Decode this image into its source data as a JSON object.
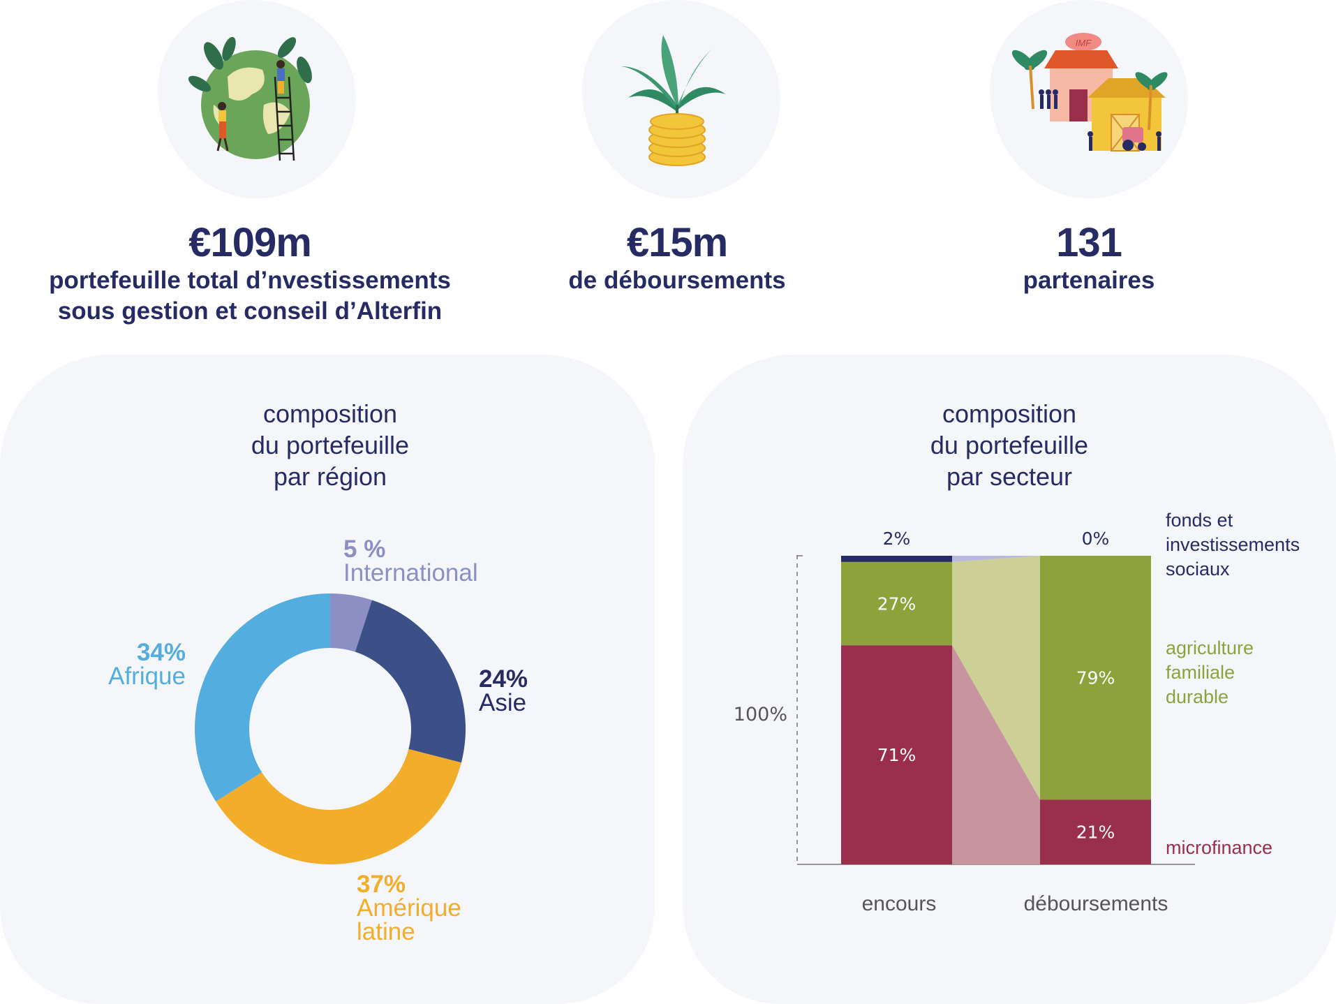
{
  "colors": {
    "navy": "#262c63",
    "blob": "#f5f6fa",
    "international": "#8b8fc4",
    "asie": "#3c4f86",
    "amerique_latine": "#f2ae2b",
    "afrique": "#54addf",
    "fonds": "#262c63",
    "agriculture": "#8ea23c",
    "microfinance": "#9a2f4c"
  },
  "stats": [
    {
      "value": "€109m",
      "desc_lines": [
        "portefeuille total d’nvestissements",
        "sous gestion et conseil d’Alterfin"
      ],
      "icon": "globe-people-icon"
    },
    {
      "value": "€15m",
      "desc_lines": [
        "de déboursements"
      ],
      "icon": "plant-coins-icon"
    },
    {
      "value": "131",
      "desc_lines": [
        "partenaires"
      ],
      "icon": "village-imf-icon",
      "icon_label": "IMF"
    }
  ],
  "chart_data": [
    {
      "type": "pie",
      "title_lines": [
        "composition",
        "du portefeuille",
        "par région"
      ],
      "slices": [
        {
          "pct_label": "5 %",
          "name_lines": [
            "International"
          ],
          "value": 5,
          "color": "#8b8fc4"
        },
        {
          "pct_label": "24%",
          "name_lines": [
            "Asie"
          ],
          "value": 24,
          "color": "#3c4f86"
        },
        {
          "pct_label": "37%",
          "name_lines": [
            "Amérique",
            "latine"
          ],
          "value": 37,
          "color": "#f2ae2b"
        },
        {
          "pct_label": "34%",
          "name_lines": [
            "Afrique"
          ],
          "value": 34,
          "color": "#54addf"
        }
      ]
    },
    {
      "type": "bar",
      "stacked": true,
      "title_lines": [
        "composition",
        "du portefeuille",
        "par secteur"
      ],
      "y_label": "100%",
      "categories": [
        "encours",
        "déboursements"
      ],
      "series": [
        {
          "name_lines": [
            "microfinance"
          ],
          "values": [
            71,
            21
          ],
          "labels": [
            "71%",
            "21%"
          ],
          "color": "#9a2f4c"
        },
        {
          "name_lines": [
            "agriculture",
            "familiale",
            "durable"
          ],
          "values": [
            27,
            79
          ],
          "labels": [
            "27%",
            "79%"
          ],
          "color": "#8ea23c"
        },
        {
          "name_lines": [
            "fonds et",
            "investissements",
            "sociaux"
          ],
          "values": [
            2,
            0
          ],
          "labels": [
            "2%",
            "0%"
          ],
          "color": "#262c63"
        }
      ]
    }
  ]
}
